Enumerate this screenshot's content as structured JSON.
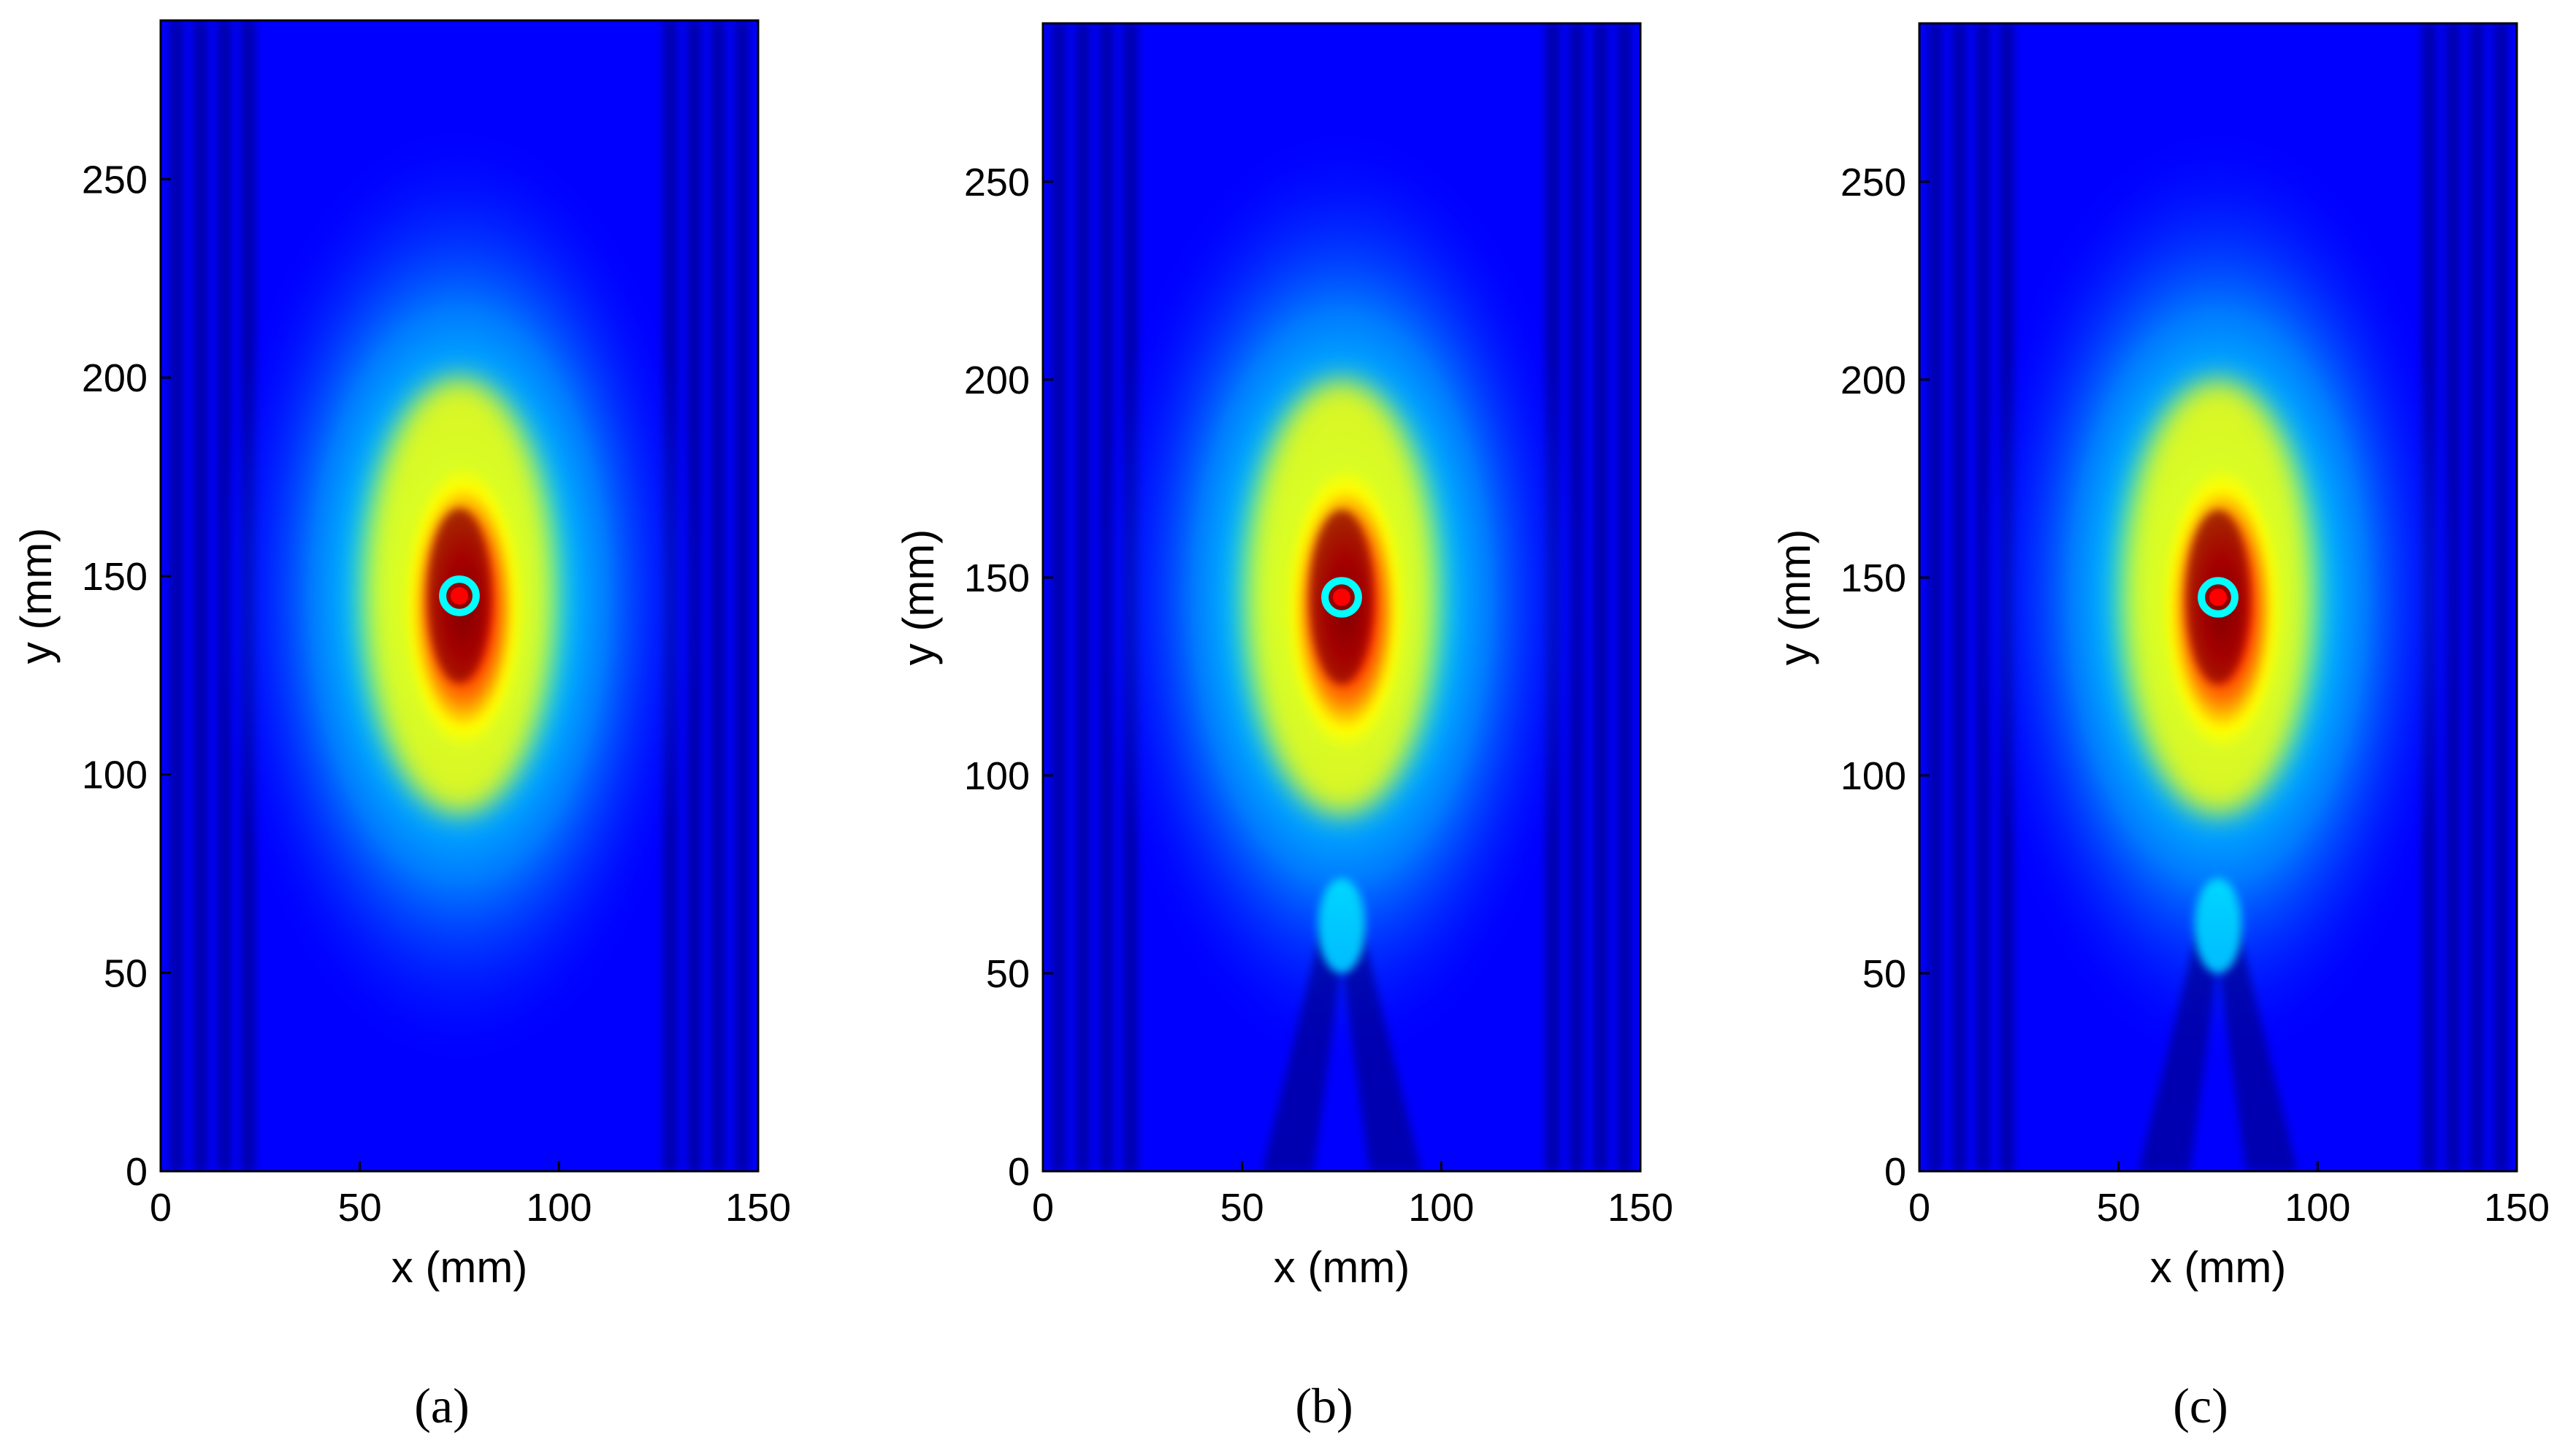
{
  "figure": {
    "panels": [
      "a",
      "b",
      "c"
    ]
  },
  "colors": {
    "colormap_jet": [
      "#00008f",
      "#0000ff",
      "#0080ff",
      "#00ffff",
      "#80ff80",
      "#ffff00",
      "#ff8000",
      "#ff0000",
      "#800000"
    ],
    "axis": "#000000",
    "background": "#ffffff"
  },
  "chart_data": [
    {
      "type": "heatmap",
      "panel_label": "(a)",
      "xlabel": "x (mm)",
      "ylabel": "y (mm)",
      "xlim": [
        0,
        150
      ],
      "ylim": [
        0,
        290
      ],
      "xticks": [
        0,
        50,
        100,
        150
      ],
      "yticks": [
        0,
        50,
        100,
        150,
        200,
        250
      ],
      "colormap": "jet",
      "hotspot": {
        "x": 75,
        "y": 145
      },
      "probe_beam": false
    },
    {
      "type": "heatmap",
      "panel_label": "(b)",
      "xlabel": "x (mm)",
      "ylabel": "y (mm)",
      "xlim": [
        0,
        150
      ],
      "ylim": [
        0,
        290
      ],
      "xticks": [
        0,
        50,
        100,
        150
      ],
      "yticks": [
        0,
        50,
        100,
        150,
        200,
        250
      ],
      "colormap": "jet",
      "hotspot": {
        "x": 75,
        "y": 145
      },
      "probe_beam": true
    },
    {
      "type": "heatmap",
      "panel_label": "(c)",
      "xlabel": "x (mm)",
      "ylabel": "y (mm)",
      "xlim": [
        0,
        150
      ],
      "ylim": [
        0,
        290
      ],
      "xticks": [
        0,
        50,
        100,
        150
      ],
      "yticks": [
        0,
        50,
        100,
        150,
        200,
        250
      ],
      "colormap": "jet",
      "hotspot": {
        "x": 75,
        "y": 145
      },
      "probe_beam": true
    }
  ]
}
